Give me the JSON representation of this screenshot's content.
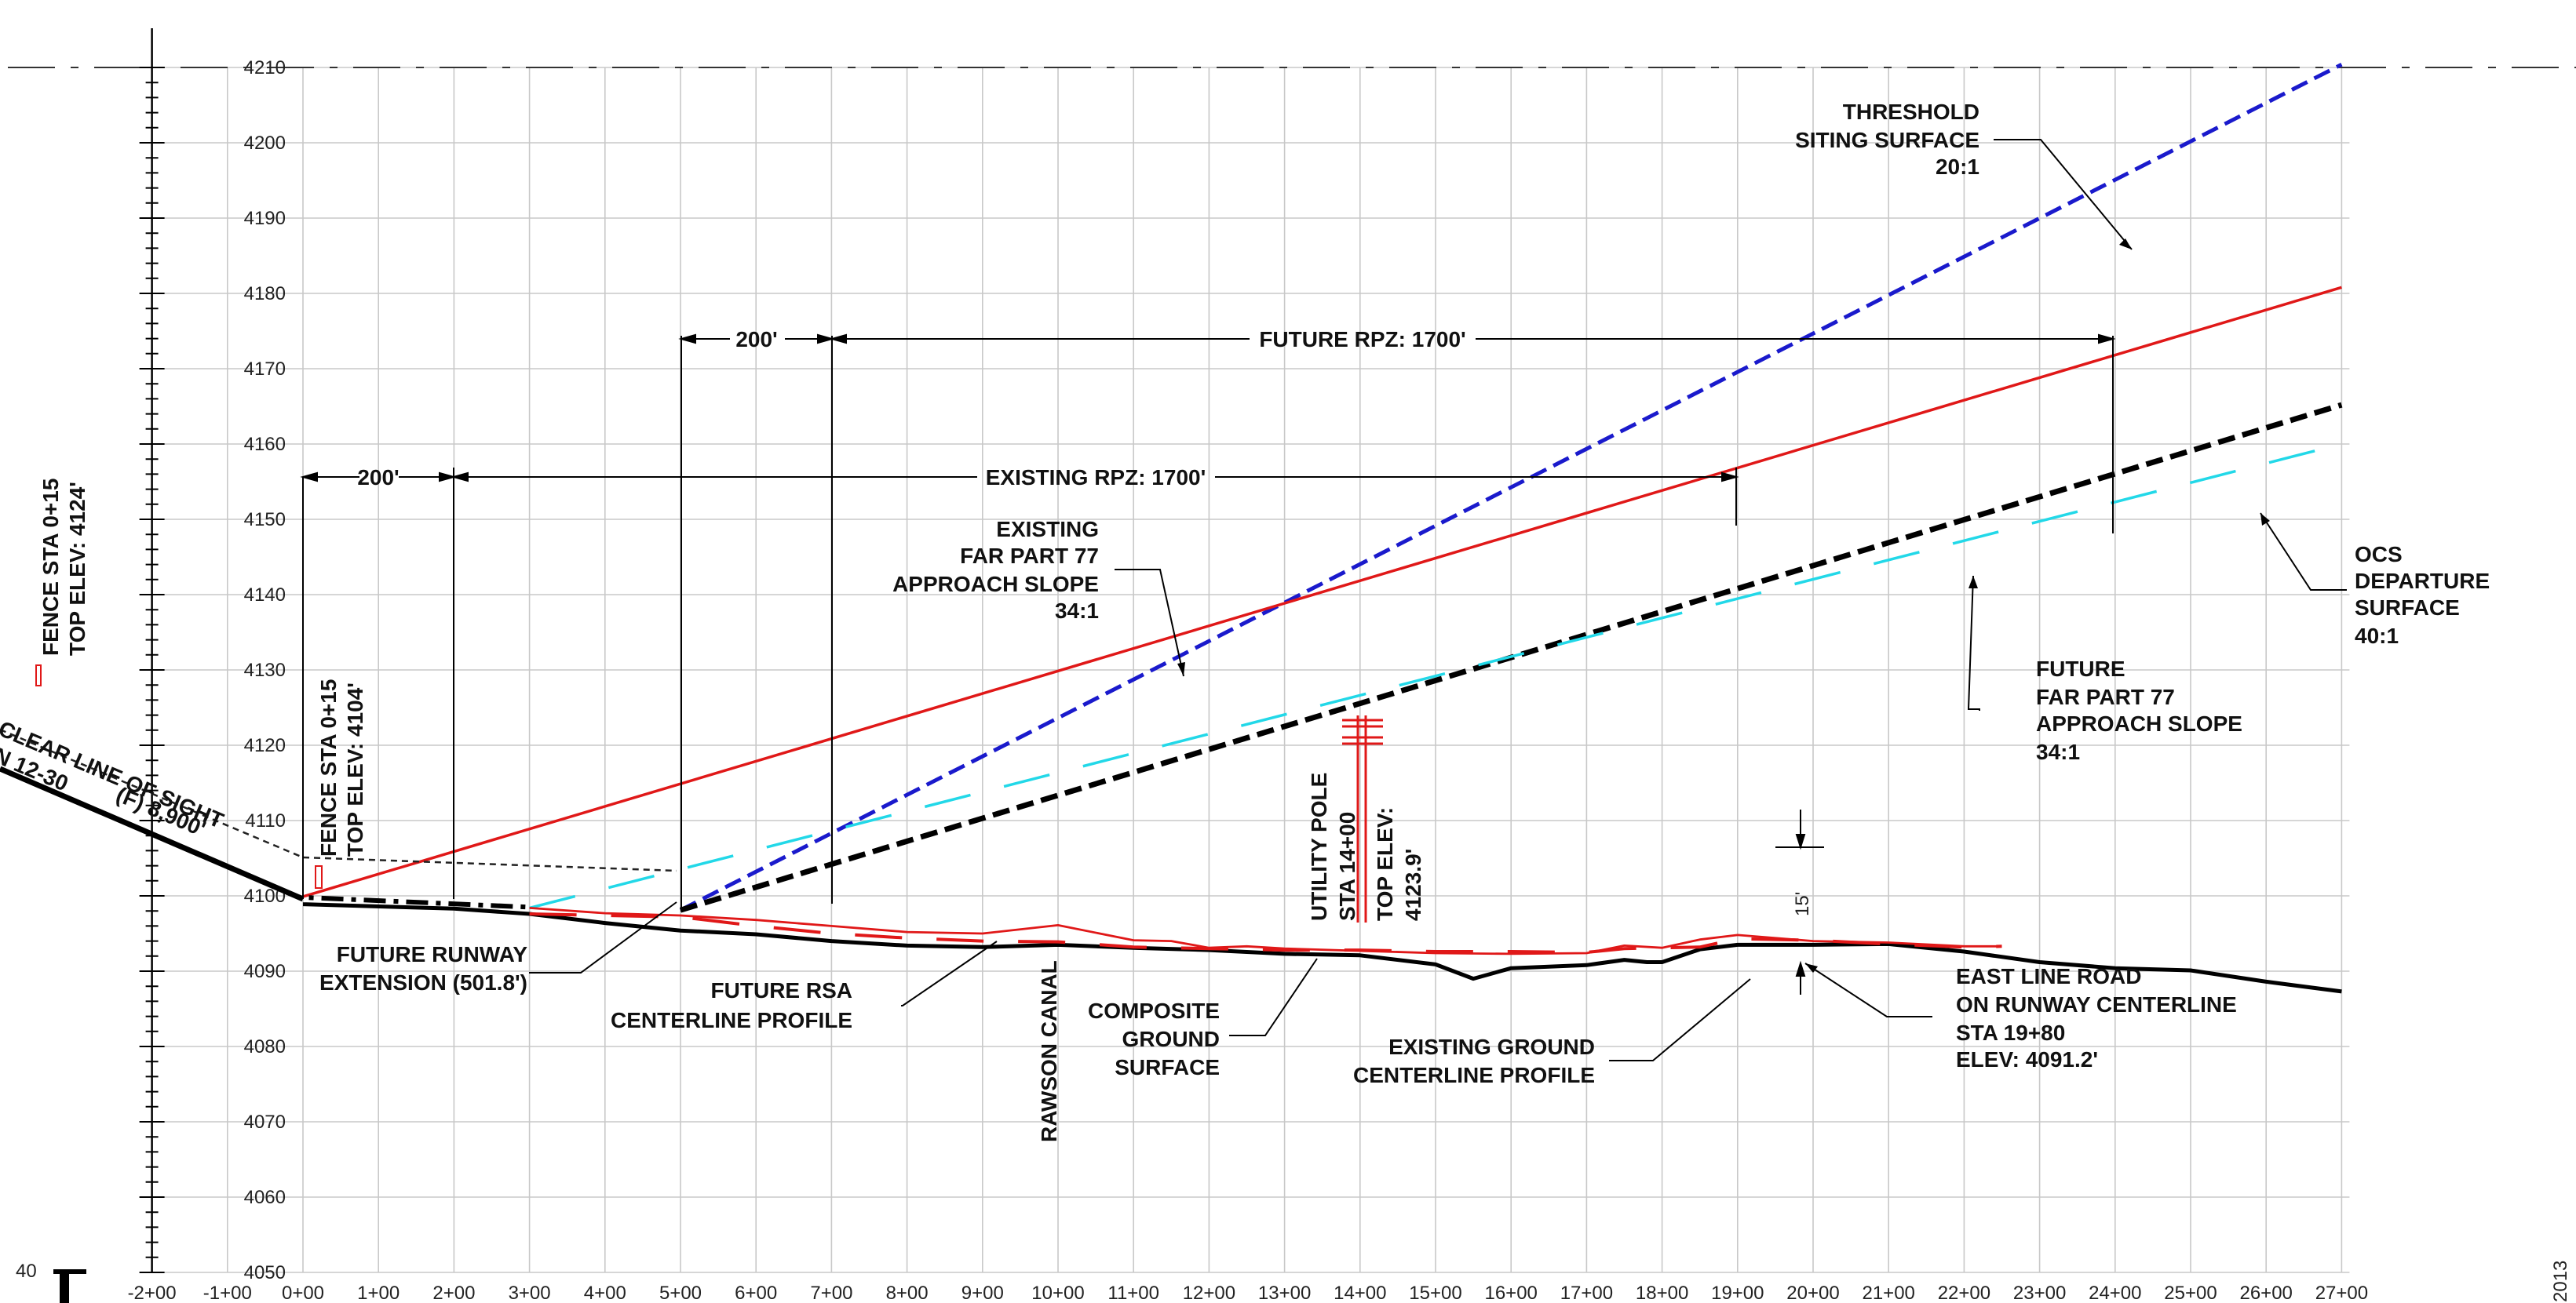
{
  "chart_data": {
    "type": "line",
    "x_unit": "station",
    "xlim": [
      -2,
      27
    ],
    "ylim": [
      4050,
      4210
    ],
    "x_ticks": [
      "-2+00",
      "-1+00",
      "0+00",
      "1+00",
      "2+00",
      "3+00",
      "4+00",
      "5+00",
      "6+00",
      "7+00",
      "8+00",
      "9+00",
      "10+00",
      "11+00",
      "12+00",
      "13+00",
      "14+00",
      "15+00",
      "16+00",
      "17+00",
      "18+00",
      "19+00",
      "20+00",
      "21+00",
      "22+00",
      "23+00",
      "24+00",
      "25+00",
      "26+00",
      "27+00"
    ],
    "y_ticks": [
      4050,
      4060,
      4070,
      4080,
      4090,
      4100,
      4110,
      4120,
      4130,
      4140,
      4150,
      4160,
      4170,
      4180,
      4190,
      4200,
      4210
    ],
    "grid": true,
    "series": [
      {
        "key": "threshold_siting",
        "color": "#1a1acc",
        "dash": "dash",
        "x": [
          5,
          27
        ],
        "y": [
          4098.1,
          4210.4
        ]
      },
      {
        "key": "existing_part77",
        "color": "#e01818",
        "dash": "solid",
        "x": [
          0,
          27
        ],
        "y": [
          4099.9,
          4180.8
        ]
      },
      {
        "key": "future_part77",
        "color": "#000000",
        "dash": "dash",
        "x": [
          5,
          27
        ],
        "y": [
          4098.1,
          4165.2
        ]
      },
      {
        "key": "ocs_departure",
        "color": "#22d8e8",
        "dash": "longdash",
        "x": [
          3,
          27
        ],
        "y": [
          4098.4,
          4160.0
        ]
      },
      {
        "key": "existing_ground",
        "color": "#000000",
        "dash": "solid",
        "x": [
          -2,
          0,
          2,
          3,
          4,
          5,
          6,
          7,
          8,
          9,
          10,
          11,
          12,
          13,
          14,
          15,
          15.5,
          16,
          17,
          17.5,
          17.8,
          18,
          18.5,
          19,
          20,
          21,
          22,
          23,
          24,
          25,
          26,
          27
        ],
        "y": [
          4100.2,
          4098.9,
          4098.3,
          4097.6,
          4096.4,
          4095.4,
          4094.9,
          4094.0,
          4093.4,
          4093.2,
          4093.5,
          4093.1,
          4092.8,
          4092.3,
          4092.1,
          4090.9,
          4089.0,
          4090.4,
          4090.8,
          4091.5,
          4091.2,
          4091.2,
          4092.9,
          4093.5,
          4093.5,
          4093.6,
          4092.6,
          4091.2,
          4090.4,
          4090.1,
          4088.6,
          4087.3
        ]
      },
      {
        "key": "future_rsa",
        "color": "#e01818",
        "dash": "longdash",
        "x": [
          3,
          4,
          5,
          6,
          7,
          8,
          9,
          10,
          11,
          12,
          13,
          14,
          15,
          16,
          17,
          17.5,
          18,
          18.5,
          19,
          20,
          21,
          22,
          22.5
        ],
        "y": [
          4097.6,
          4097.4,
          4097.2,
          4096.0,
          4095.0,
          4094.4,
          4094.0,
          4093.9,
          4093.2,
          4093.0,
          4092.8,
          4092.8,
          4092.6,
          4092.6,
          4092.5,
          4093.0,
          4093.1,
          4093.2,
          4094.3,
          4094.1,
          4093.6,
          4093.2,
          4093.3
        ]
      },
      {
        "key": "composite_ground",
        "color": "#e01818",
        "dash": "solid",
        "x": [
          3,
          4,
          5,
          6,
          7,
          8,
          9,
          10,
          11,
          11.5,
          12,
          12.5,
          13,
          14,
          15,
          16,
          17,
          17.5,
          18,
          18.5,
          19,
          20,
          21,
          22,
          22.5
        ],
        "y": [
          4098.4,
          4097.7,
          4097.4,
          4096.8,
          4096.0,
          4095.2,
          4095.0,
          4096.1,
          4094.1,
          4094.0,
          4093.1,
          4093.3,
          4093.0,
          4092.7,
          4092.4,
          4092.3,
          4092.4,
          4093.4,
          4093.1,
          4094.2,
          4094.8,
          4094.0,
          4093.8,
          4093.3,
          4093.3
        ]
      },
      {
        "key": "future_runway_extension",
        "color": "#000000",
        "dash": "dashdot",
        "x": [
          -2,
          0,
          3
        ],
        "y": [
          4100.0,
          4099.8,
          4098.5
        ]
      }
    ],
    "annotations": {
      "threshold": [
        "THRESHOLD",
        "SITING SURFACE",
        "20:1"
      ],
      "existing_part77": [
        "EXISTING",
        "FAR PART 77",
        "APPROACH SLOPE",
        "34:1"
      ],
      "future_part77": [
        "FUTURE",
        "FAR PART 77",
        "APPROACH SLOPE",
        "34:1"
      ],
      "ocs": [
        "OCS",
        "DEPARTURE",
        "SURFACE",
        "40:1"
      ],
      "future_runway": [
        "FUTURE RUNWAY",
        "EXTENSION (501.8')"
      ],
      "future_rsa": [
        "FUTURE RSA",
        "CENTERLINE PROFILE"
      ],
      "composite": [
        "COMPOSITE",
        "GROUND",
        "SURFACE"
      ],
      "existing_ground": [
        "EXISTING GROUND",
        "CENTERLINE PROFILE"
      ],
      "east_line_road": [
        "EAST LINE ROAD",
        "ON RUNWAY CENTERLINE",
        "STA 19+80",
        "ELEV: 4091.2'"
      ],
      "rawson_canal": "RAWSON CANAL",
      "utility_pole": [
        "UTILITY POLE",
        "STA 14+00",
        "TOP ELEV:",
        "4123.9'"
      ],
      "fence_left": [
        "FENCE STA 0+15",
        "TOP ELEV: 4124'"
      ],
      "fence_mid": [
        "FENCE STA 0+15",
        "TOP ELEV: 4104'"
      ],
      "clear_line_of_sight": "CLEAR LINE OF SIGHT",
      "runway_partial": "N 12-30",
      "runway_length_partial": "(F) 8,900'",
      "dim_15": "15'",
      "dim_200_existing": "200'",
      "dim_200_future": "200'",
      "existing_rpz": "EXISTING RPZ: 1700'",
      "future_rpz": "FUTURE RPZ: 1700'",
      "corner_40": "40",
      "corner_2013": "2013"
    }
  }
}
